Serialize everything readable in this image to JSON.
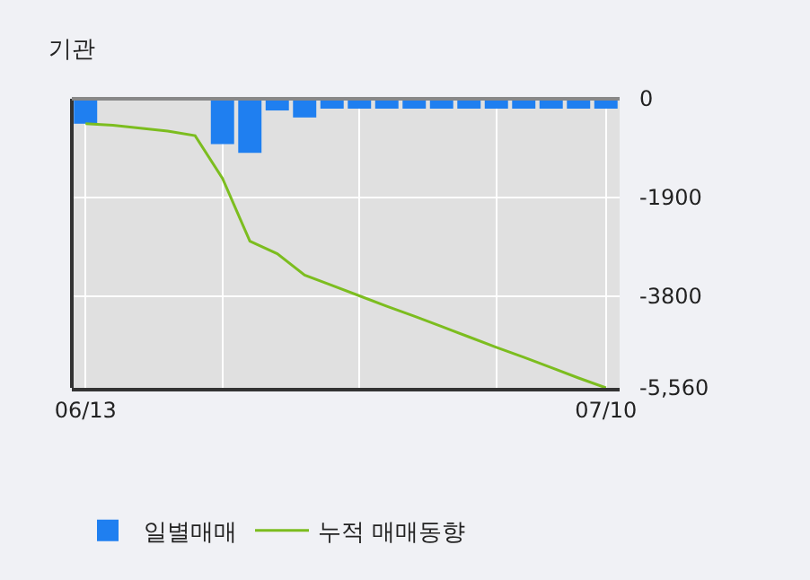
{
  "chart_data": {
    "type": "bar",
    "title": "기관",
    "categories": [
      "06/13",
      null,
      null,
      null,
      null,
      null,
      null,
      null,
      null,
      null,
      null,
      null,
      null,
      null,
      null,
      null,
      null,
      null,
      null,
      "07/10"
    ],
    "series": [
      {
        "name": "일별매매",
        "color": "#1f7ff0",
        "values": [
          -480,
          0,
          0,
          0,
          0,
          -870,
          -1040,
          -225,
          -360,
          -190,
          -190,
          -190,
          -190,
          -190,
          -190,
          -190,
          -190,
          -190,
          -190,
          -190
        ]
      },
      {
        "name": "누적 매매동향",
        "type": "line",
        "color": "#7cbd1f",
        "values": [
          -480,
          -510,
          -565,
          -620,
          -710,
          -1530,
          -2740,
          -2980,
          -3390,
          -3590,
          -3790,
          -3990,
          -4180,
          -4380,
          -4580,
          -4780,
          -4970,
          -5170,
          -5370,
          -5560
        ]
      }
    ],
    "ylim": [
      -5560,
      0
    ],
    "yticks": [
      0,
      -1900,
      -3800,
      {
        "value": -5560,
        "label": "-5,560"
      }
    ],
    "grid": true,
    "legend": "bottom"
  }
}
